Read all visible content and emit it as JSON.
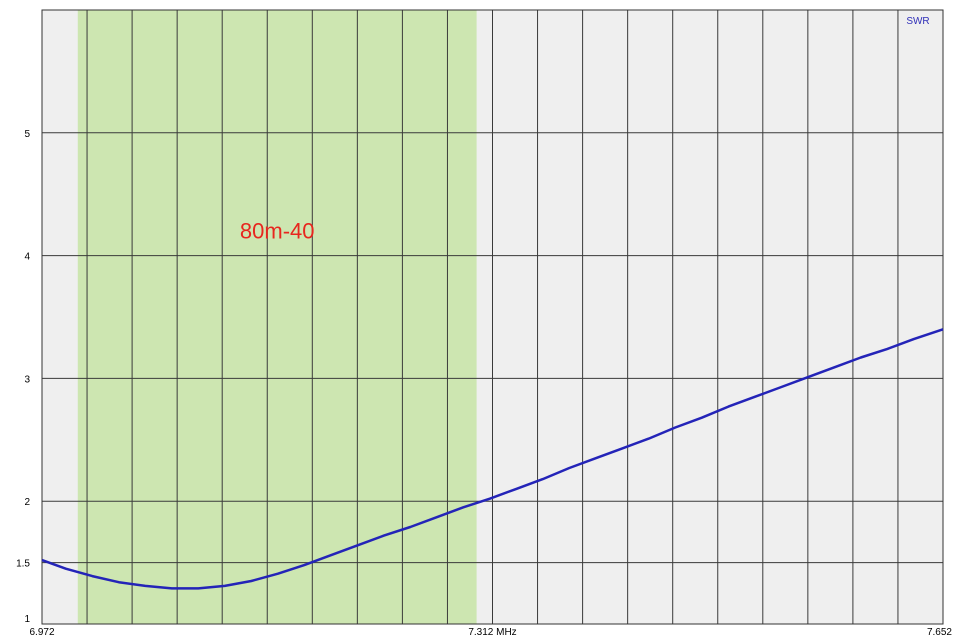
{
  "chart_data": {
    "type": "line",
    "legend": "SWR",
    "legend_placement": "top-right",
    "x_unit": "MHz",
    "xlim": [
      6.972,
      7.652
    ],
    "x_ticks": [
      6.972,
      7.312,
      7.652
    ],
    "x_tick_labels": [
      "6.972",
      "7.312 MHz",
      "7.652"
    ],
    "ylim": [
      1,
      6
    ],
    "y_ticks": [
      1,
      1.5,
      2,
      3,
      4,
      5
    ],
    "y_tick_labels": [
      "1",
      "1.5",
      "2",
      "3",
      "4",
      "5"
    ],
    "grid": true,
    "band": {
      "label": "80m-40",
      "x_start": 6.999,
      "x_end": 7.3,
      "color": "#cde6b1"
    },
    "series": [
      {
        "name": "SWR",
        "color": "#2424b8",
        "x": [
          6.972,
          6.99,
          7.01,
          7.03,
          7.05,
          7.07,
          7.09,
          7.11,
          7.13,
          7.15,
          7.17,
          7.19,
          7.21,
          7.23,
          7.25,
          7.27,
          7.29,
          7.31,
          7.33,
          7.35,
          7.37,
          7.39,
          7.41,
          7.43,
          7.45,
          7.47,
          7.49,
          7.51,
          7.53,
          7.55,
          7.57,
          7.59,
          7.61,
          7.63,
          7.652
        ],
        "y": [
          1.52,
          1.45,
          1.39,
          1.34,
          1.31,
          1.29,
          1.29,
          1.31,
          1.35,
          1.41,
          1.48,
          1.56,
          1.64,
          1.72,
          1.79,
          1.87,
          1.95,
          2.02,
          2.1,
          2.18,
          2.27,
          2.35,
          2.43,
          2.51,
          2.6,
          2.68,
          2.77,
          2.85,
          2.93,
          3.01,
          3.09,
          3.17,
          3.24,
          3.32,
          3.4
        ]
      }
    ]
  }
}
